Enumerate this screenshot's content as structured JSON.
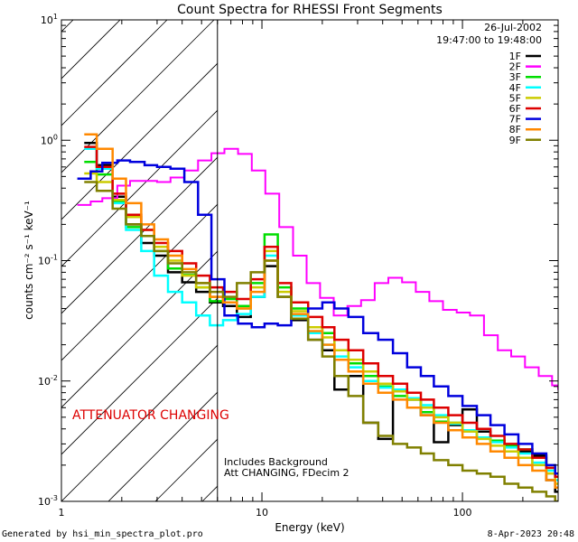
{
  "chart_data": {
    "type": "line",
    "title": "Count Spectra for RHESSI Front Segments",
    "xlabel": "Energy (keV)",
    "ylabel": "counts cm⁻² s⁻¹ keV⁻¹",
    "x_scale": "log",
    "y_scale": "log",
    "xlim": [
      1,
      300
    ],
    "ylim": [
      0.001,
      10
    ],
    "x_ticks": [
      {
        "value": 1,
        "label": "1"
      },
      {
        "value": 10,
        "label": "10"
      },
      {
        "value": 100,
        "label": "100"
      }
    ],
    "y_ticks": [
      {
        "value": 0.001,
        "base": "10",
        "exp": "-3"
      },
      {
        "value": 0.01,
        "base": "10",
        "exp": "-2"
      },
      {
        "value": 0.1,
        "base": "10",
        "exp": "-1"
      },
      {
        "value": 1,
        "base": "10",
        "exp": "0"
      },
      {
        "value": 10,
        "base": "10",
        "exp": "1"
      }
    ],
    "date": "26-Jul-2002",
    "time_range": "19:47:00 to 19:48:00",
    "attenuator_label": "ATTENUATOR CHANGING",
    "attenuator_boundary_kev": 6,
    "notes": [
      "Includes Background",
      "Att CHANGING, FDecim 2"
    ],
    "series": [
      {
        "name": "1F",
        "color": "#000000",
        "x": [
          1.3,
          1.5,
          1.8,
          2.1,
          2.5,
          2.9,
          3.4,
          4,
          4.7,
          5.5,
          6.4,
          7.5,
          8.8,
          10.3,
          12,
          14,
          17,
          20,
          23,
          27,
          32,
          38,
          45,
          53,
          62,
          72,
          85,
          100,
          118,
          138,
          162,
          190,
          223,
          262,
          290
        ],
        "values": [
          0.95,
          0.62,
          0.34,
          0.2,
          0.14,
          0.11,
          0.08,
          0.066,
          0.055,
          0.045,
          0.042,
          0.034,
          0.05,
          0.09,
          0.05,
          0.032,
          0.022,
          0.018,
          0.0085,
          0.011,
          0.0045,
          0.0033,
          0.0085,
          0.007,
          0.0052,
          0.0031,
          0.0043,
          0.0058,
          0.0038,
          0.0032,
          0.0026,
          0.0026,
          0.0024,
          0.0015,
          0.0012
        ]
      },
      {
        "name": "2F",
        "color": "#ff00ff",
        "x": [
          1.2,
          1.4,
          1.6,
          1.9,
          2.2,
          2.6,
          3,
          3.5,
          4.1,
          4.8,
          5.6,
          6.5,
          7.6,
          8.9,
          10.4,
          12.2,
          14.3,
          16.7,
          19.5,
          22.8,
          26.7,
          31.2,
          36.5,
          42.7,
          50,
          58.5,
          68.4,
          80,
          93.6,
          109,
          128,
          150,
          175,
          205,
          240,
          280,
          300
        ],
        "values": [
          0.29,
          0.31,
          0.33,
          0.42,
          0.46,
          0.46,
          0.45,
          0.49,
          0.56,
          0.68,
          0.78,
          0.85,
          0.77,
          0.56,
          0.36,
          0.19,
          0.11,
          0.065,
          0.049,
          0.035,
          0.042,
          0.047,
          0.065,
          0.072,
          0.066,
          0.055,
          0.046,
          0.039,
          0.037,
          0.035,
          0.024,
          0.018,
          0.016,
          0.013,
          0.011,
          0.0092,
          0.0086
        ]
      },
      {
        "name": "3F",
        "color": "#00dd00",
        "x": [
          1.3,
          1.5,
          1.8,
          2.1,
          2.5,
          2.9,
          3.4,
          4,
          4.7,
          5.5,
          6.4,
          7.5,
          8.8,
          10.3,
          12,
          14,
          17,
          20,
          23,
          27,
          32,
          38,
          45,
          53,
          62,
          72,
          85,
          100,
          118,
          138,
          162,
          190,
          223,
          262,
          290
        ],
        "values": [
          0.66,
          0.52,
          0.31,
          0.19,
          0.16,
          0.12,
          0.086,
          0.076,
          0.06,
          0.046,
          0.048,
          0.042,
          0.065,
          0.165,
          0.06,
          0.04,
          0.028,
          0.025,
          0.018,
          0.014,
          0.011,
          0.009,
          0.0075,
          0.007,
          0.0055,
          0.0046,
          0.0045,
          0.0038,
          0.0034,
          0.0032,
          0.0029,
          0.0027,
          0.0023,
          0.0019,
          0.0016
        ]
      },
      {
        "name": "4F",
        "color": "#00ffff",
        "x": [
          1.3,
          1.5,
          1.8,
          2.1,
          2.5,
          2.9,
          3.4,
          4,
          4.7,
          5.5,
          6.4,
          7.5,
          8.8,
          10.3,
          12,
          14,
          17,
          20,
          23,
          27,
          32,
          38,
          45,
          53,
          62,
          72,
          85,
          100,
          118,
          138,
          162,
          190,
          223,
          262,
          290
        ],
        "values": [
          0.85,
          0.58,
          0.3,
          0.18,
          0.12,
          0.075,
          0.055,
          0.045,
          0.035,
          0.029,
          0.032,
          0.036,
          0.05,
          0.11,
          0.05,
          0.035,
          0.025,
          0.02,
          0.016,
          0.013,
          0.01,
          0.0088,
          0.0085,
          0.0072,
          0.0063,
          0.0052,
          0.0044,
          0.0039,
          0.0034,
          0.0031,
          0.0028,
          0.0025,
          0.0021,
          0.0018,
          0.0015
        ]
      },
      {
        "name": "5F",
        "color": "#cccc00",
        "x": [
          1.3,
          1.5,
          1.8,
          2.1,
          2.5,
          2.9,
          3.4,
          4,
          4.7,
          5.5,
          6.4,
          7.5,
          8.8,
          10.3,
          12,
          14,
          17,
          20,
          23,
          27,
          32,
          38,
          45,
          53,
          62,
          72,
          85,
          100,
          118,
          138,
          162,
          190,
          223,
          262,
          290
        ],
        "values": [
          0.53,
          0.45,
          0.32,
          0.23,
          0.18,
          0.13,
          0.1,
          0.075,
          0.06,
          0.05,
          0.045,
          0.04,
          0.06,
          0.12,
          0.055,
          0.038,
          0.028,
          0.023,
          0.018,
          0.015,
          0.012,
          0.0095,
          0.0082,
          0.007,
          0.006,
          0.005,
          0.0045,
          0.0038,
          0.0033,
          0.0029,
          0.0026,
          0.0023,
          0.002,
          0.0017,
          0.0014
        ]
      },
      {
        "name": "6F",
        "color": "#dd0000",
        "x": [
          1.3,
          1.5,
          1.8,
          2.1,
          2.5,
          2.9,
          3.4,
          4,
          4.7,
          5.5,
          6.4,
          7.5,
          8.8,
          10.3,
          12,
          14,
          17,
          20,
          23,
          27,
          32,
          38,
          45,
          53,
          62,
          72,
          85,
          100,
          118,
          138,
          162,
          190,
          223,
          262,
          290
        ],
        "values": [
          0.88,
          0.6,
          0.36,
          0.24,
          0.18,
          0.14,
          0.12,
          0.095,
          0.075,
          0.06,
          0.055,
          0.048,
          0.07,
          0.13,
          0.065,
          0.045,
          0.034,
          0.028,
          0.022,
          0.018,
          0.014,
          0.011,
          0.0095,
          0.008,
          0.007,
          0.006,
          0.0052,
          0.0045,
          0.004,
          0.0035,
          0.003,
          0.0027,
          0.0023,
          0.0019,
          0.0016
        ]
      },
      {
        "name": "7F",
        "color": "#0000dd",
        "x": [
          1.2,
          1.4,
          1.6,
          1.9,
          2.2,
          2.6,
          3,
          3.5,
          4.1,
          4.8,
          5.6,
          6.5,
          7.6,
          8.9,
          10.3,
          12,
          14,
          17,
          20,
          23,
          27,
          32,
          38,
          45,
          53,
          62,
          72,
          85,
          100,
          118,
          138,
          162,
          190,
          223,
          262,
          290
        ],
        "values": [
          0.48,
          0.55,
          0.65,
          0.68,
          0.66,
          0.62,
          0.6,
          0.58,
          0.45,
          0.24,
          0.07,
          0.035,
          0.03,
          0.028,
          0.03,
          0.029,
          0.033,
          0.04,
          0.045,
          0.04,
          0.034,
          0.025,
          0.022,
          0.017,
          0.013,
          0.011,
          0.009,
          0.0075,
          0.0062,
          0.0052,
          0.0043,
          0.0036,
          0.003,
          0.0025,
          0.002,
          0.0017
        ]
      },
      {
        "name": "8F",
        "color": "#ff8800",
        "x": [
          1.3,
          1.5,
          1.8,
          2.1,
          2.5,
          2.9,
          3.4,
          4,
          4.7,
          5.5,
          6.4,
          7.5,
          8.8,
          10.3,
          12,
          14,
          17,
          20,
          23,
          27,
          32,
          38,
          45,
          53,
          62,
          72,
          85,
          100,
          118,
          138,
          162,
          190,
          223,
          262,
          290
        ],
        "values": [
          1.12,
          0.85,
          0.48,
          0.3,
          0.2,
          0.15,
          0.11,
          0.085,
          0.065,
          0.05,
          0.045,
          0.04,
          0.055,
          0.1,
          0.05,
          0.036,
          0.026,
          0.02,
          0.015,
          0.012,
          0.0095,
          0.008,
          0.007,
          0.006,
          0.0052,
          0.0045,
          0.0039,
          0.0034,
          0.003,
          0.0026,
          0.0023,
          0.002,
          0.0018,
          0.0015,
          0.0013
        ]
      },
      {
        "name": "9F",
        "color": "#808000",
        "x": [
          1.3,
          1.5,
          1.8,
          2.1,
          2.5,
          2.9,
          3.4,
          4,
          4.7,
          5.5,
          6.4,
          7.5,
          8.8,
          10.3,
          12,
          14,
          17,
          20,
          23,
          27,
          32,
          38,
          45,
          53,
          62,
          72,
          85,
          100,
          118,
          138,
          162,
          190,
          223,
          262,
          290
        ],
        "values": [
          0.45,
          0.38,
          0.27,
          0.2,
          0.16,
          0.12,
          0.095,
          0.08,
          0.065,
          0.055,
          0.05,
          0.065,
          0.08,
          0.1,
          0.05,
          0.033,
          0.022,
          0.016,
          0.011,
          0.0075,
          0.0045,
          0.0035,
          0.003,
          0.0028,
          0.0025,
          0.0022,
          0.002,
          0.0018,
          0.0017,
          0.0016,
          0.0014,
          0.0013,
          0.0012,
          0.0011,
          0.001
        ]
      }
    ]
  },
  "footer": {
    "generated_by": "Generated by hsi_min_spectra_plot.pro",
    "generated_at": "8-Apr-2023 20:48"
  }
}
